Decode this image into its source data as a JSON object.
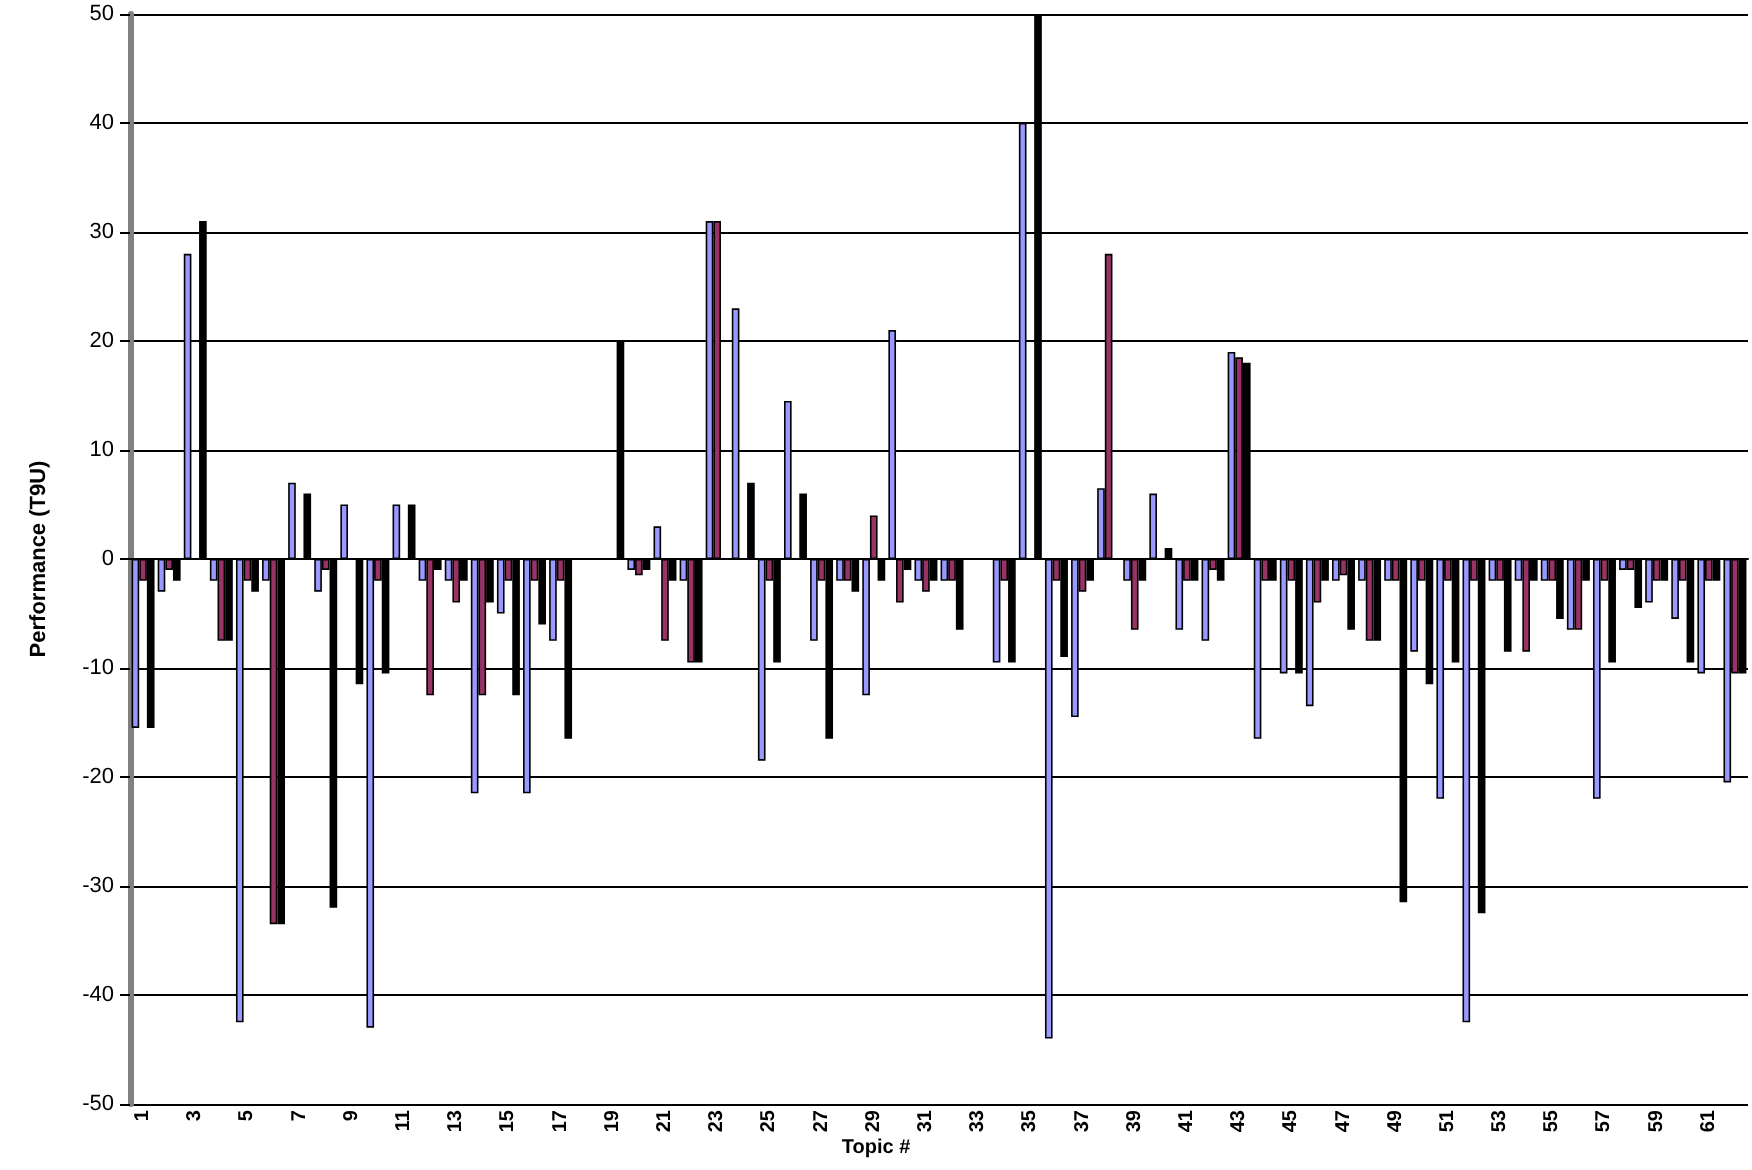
{
  "chart_data": {
    "type": "bar",
    "xlabel": "Topic #",
    "ylabel": "Performance (T9U)",
    "categories": [
      "1",
      null,
      "3",
      null,
      "5",
      null,
      "7",
      null,
      "9",
      null,
      "11",
      null,
      "13",
      null,
      "15",
      null,
      "17",
      null,
      "19",
      null,
      "21",
      null,
      "23",
      null,
      "25",
      null,
      "27",
      null,
      "29",
      null,
      "31",
      null,
      "33",
      null,
      "35",
      null,
      "37",
      null,
      "39",
      null,
      "41",
      null,
      "43",
      null,
      "45",
      null,
      "47",
      null,
      "49",
      null,
      "51",
      null,
      "53",
      null,
      "55",
      null,
      "57",
      null,
      "59",
      null,
      "61",
      null
    ],
    "series": [
      {
        "color": "#9999ff",
        "values": [
          -15.5,
          -3,
          28,
          -2,
          -42.5,
          -2,
          7,
          -3,
          5,
          -43,
          5,
          -2,
          -2,
          -21.5,
          -5,
          -21.5,
          -7.5,
          null,
          null,
          -1,
          3,
          -2,
          31,
          23,
          -18.5,
          14.5,
          -7.5,
          -2,
          -12.5,
          21,
          -2,
          -2,
          null,
          -9.5,
          40,
          -44,
          -14.5,
          6.5,
          -2,
          6,
          -6.5,
          -7.5,
          19,
          -16.5,
          -10.5,
          -13.5,
          -2,
          -2,
          -2,
          -8.5,
          -22,
          -42.5,
          -2,
          -2,
          -2,
          -6.5,
          -22,
          -1,
          -4,
          -5.5,
          -10.5,
          -20.5
        ]
      },
      {
        "color": "#993366",
        "values": [
          -2,
          -1,
          null,
          -7.5,
          -2,
          -33.5,
          null,
          -1,
          null,
          -2,
          null,
          -12.5,
          -4,
          -12.5,
          -2,
          -2,
          -2,
          null,
          null,
          -1.5,
          -7.5,
          -9.5,
          31,
          null,
          -2,
          null,
          -2,
          -2,
          4,
          -4,
          -3,
          -2,
          null,
          -2,
          null,
          -2,
          -3,
          28,
          -6.5,
          null,
          -2,
          -1,
          18.5,
          -2,
          -2,
          -4,
          -1.5,
          -7.5,
          -2,
          -2,
          -2,
          -2,
          -2,
          -8.5,
          -2,
          -6.5,
          -2,
          -1,
          -2,
          -2,
          -2,
          -10.5
        ]
      },
      {
        "color": "#000000",
        "values": [
          -15.5,
          -2,
          31,
          -7.5,
          -3,
          -33.5,
          6,
          -32,
          -11.5,
          -10.5,
          5,
          -1,
          -2,
          -4,
          -12.5,
          -6,
          -16.5,
          null,
          20,
          -1,
          -2,
          -9.5,
          null,
          7,
          -9.5,
          6,
          -16.5,
          -3,
          -2,
          -1,
          -2,
          -6.5,
          null,
          -9.5,
          50,
          -9,
          -2,
          null,
          -2,
          1,
          -2,
          -2,
          18,
          -2,
          -10.5,
          -2,
          -6.5,
          -7.5,
          -31.5,
          -11.5,
          -9.5,
          -32.5,
          -8.5,
          -2,
          -5.5,
          -2,
          -9.5,
          -4.5,
          -2,
          -9.5,
          -2,
          -10.5
        ]
      }
    ],
    "ylim": [
      -50,
      50
    ],
    "yticks": [
      -50,
      -40,
      -30,
      -20,
      -10,
      0,
      10,
      20,
      30,
      40,
      50
    ],
    "grid": "y",
    "legend": false
  }
}
